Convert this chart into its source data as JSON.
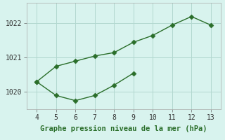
{
  "x_upper": [
    4,
    5,
    6,
    7,
    8,
    9,
    10,
    11,
    12,
    13
  ],
  "y_upper": [
    1020.3,
    1020.75,
    1020.9,
    1021.05,
    1021.15,
    1021.45,
    1021.65,
    1021.95,
    1022.2,
    1021.95
  ],
  "x_lower": [
    4,
    5,
    6,
    7,
    8,
    9
  ],
  "y_lower": [
    1020.3,
    1019.9,
    1019.75,
    1019.9,
    1020.2,
    1020.55
  ],
  "line_color": "#2a6e2a",
  "markersize": 3.5,
  "xlabel": "Graphe pression niveau de la mer (hPa)",
  "background_color": "#d8f3ee",
  "grid_color": "#b2d8d0",
  "xlim": [
    3.5,
    13.5
  ],
  "ylim": [
    1019.5,
    1022.6
  ],
  "xticks": [
    4,
    5,
    6,
    7,
    8,
    9,
    10,
    11,
    12,
    13
  ],
  "yticks": [
    1020,
    1021,
    1022
  ],
  "tick_fontsize": 7,
  "xlabel_fontsize": 7.5
}
